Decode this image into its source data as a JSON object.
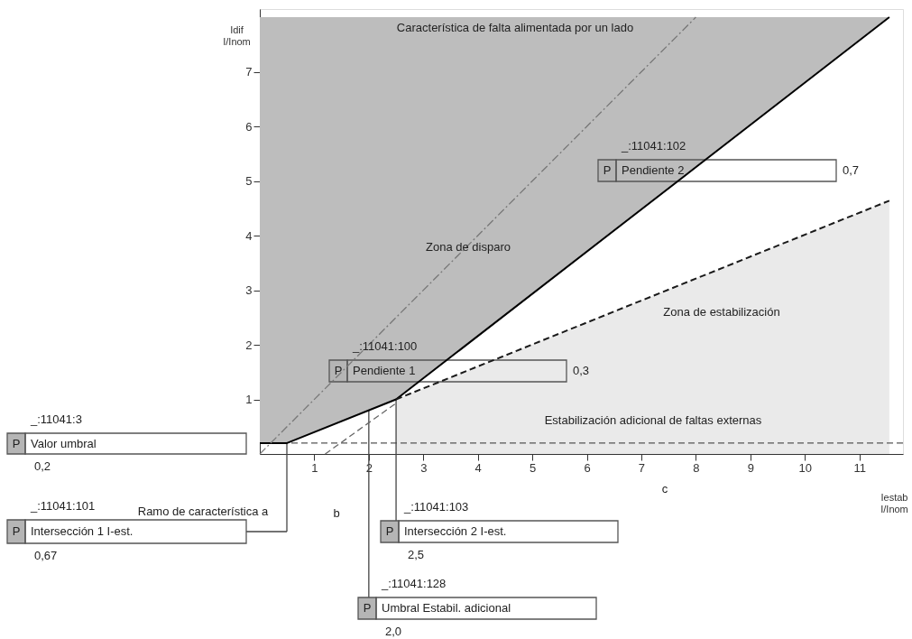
{
  "chart_data": {
    "type": "line",
    "xlabel": "Iestab\nI/Inom",
    "ylabel": "Idif\nI/Inom",
    "xlim": [
      0,
      11.8
    ],
    "ylim": [
      0,
      8.15
    ],
    "xticks": [
      1,
      2,
      3,
      4,
      5,
      6,
      7,
      8,
      9,
      10,
      11
    ],
    "yticks": [
      1,
      2,
      3,
      4,
      5,
      6,
      7
    ],
    "grid": false,
    "marker": "none",
    "series": [
      {
        "type": "line",
        "color": "#000000",
        "line_style": "solid",
        "x": [
          0,
          0.5,
          2.5,
          11.55
        ],
        "values": [
          0.2,
          0.2,
          1.0,
          8.0
        ],
        "lower": [
          0.2,
          0.2,
          1.0,
          8.0
        ],
        "upper": [
          8.0,
          8.0,
          8.0,
          8.0
        ]
      },
      {
        "type": "line",
        "color": "#1a1a1a",
        "line_style": "dashed",
        "x": [
          2.5,
          11.55
        ],
        "values": [
          1.0,
          4.64
        ],
        "lower": [
          0,
          0
        ],
        "upper": [
          1.0,
          4.64
        ]
      },
      {
        "type": "line",
        "color": "#777777",
        "line_style": "dashdot",
        "x": [
          0,
          8.0
        ],
        "values": [
          0,
          8.0
        ]
      },
      {
        "type": "line",
        "color": "#666666",
        "line_style": "dashed",
        "x": [
          1.2,
          2.5
        ],
        "values": [
          0,
          0.93
        ]
      }
    ],
    "ref_lines": [
      {
        "axis": "y",
        "value": 0.2,
        "color": "#555555",
        "line_style": "dashed"
      }
    ],
    "annotations": [
      "Característica de falta alimentada por un lado",
      "Zona de disparo",
      "Zona de estabilización",
      "Estabilización adicional de faltas externas",
      "Ramo de característica  a",
      "b",
      "c",
      "_:11041:3",
      "P",
      "Valor umbral",
      "0,2",
      "_:11041:101",
      "P",
      "Intersección 1 I-est.",
      "0,67",
      "_:11041:100",
      "P",
      "Pendiente 1",
      "0,3",
      "_:11041:102",
      "P",
      "Pendiente 2",
      "0,7",
      "_:11041:103",
      "P",
      {
        "text": "Intersección 2 I-est.",
        "x": 2.5,
        "y": 1.0
      },
      "2,5",
      "_:11041:128",
      "P",
      {
        "text": "Umbral Estabil. adicional",
        "x": 2.0,
        "y": 0.8
      },
      "2,0"
    ]
  }
}
